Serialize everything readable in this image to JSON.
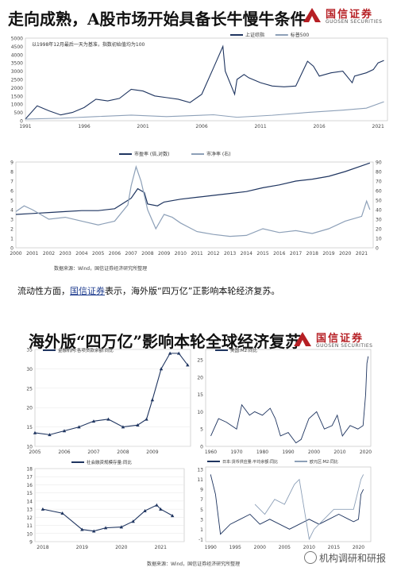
{
  "top": {
    "title": "走向成熟，A股市场开始具备长牛慢牛条件",
    "logo": {
      "name": "国信证券",
      "sub": "GUOSEN SECURITIES",
      "color": "#b61f24"
    },
    "source": "数据来源：Wind，国信证券经济研究所整理"
  },
  "bottom": {
    "title": "海外版“四万亿”影响本轮全球经济复苏",
    "logo": {
      "name": "国信证券",
      "sub": "GUOSEN SECURITIES"
    },
    "source": "数据来源：Wind，国信证券经济研究所整理"
  },
  "paragraph": {
    "prefix": "流动性方面，",
    "link": "国信证券",
    "suffix": "表示，海外版“四万亿”正影响本轮经济复苏。"
  },
  "watermark": "机构调研和研报",
  "chart_data": [
    {
      "type": "line",
      "note": "以1998年12月最后一天为基准，指数初始值均为100",
      "series": [
        {
          "name": "上证综指",
          "color": "#1f3560",
          "x": [
            1991,
            1992,
            1993,
            1994,
            1995,
            1996,
            1997,
            1998,
            1999,
            2000,
            2001,
            2002,
            2003,
            2004,
            2005,
            2006,
            2007,
            2007.8,
            2008,
            2008.8,
            2009,
            2009.6,
            2010,
            2011,
            2012,
            2013,
            2014,
            2015,
            2015.5,
            2016,
            2017,
            2018,
            2018.8,
            2019,
            2020,
            2020.6,
            2021,
            2021.5
          ],
          "y": [
            100,
            900,
            600,
            350,
            500,
            800,
            1300,
            1200,
            1350,
            1900,
            1800,
            1500,
            1400,
            1300,
            1100,
            1600,
            3200,
            4500,
            3000,
            1600,
            2500,
            2800,
            2600,
            2300,
            2100,
            2050,
            2100,
            3600,
            3300,
            2700,
            2900,
            3000,
            2300,
            2700,
            2900,
            3100,
            3500,
            3650
          ]
        },
        {
          "name": "标普500",
          "color": "#8da0b8",
          "x": [
            1991,
            1994,
            1997,
            2000,
            2003,
            2007,
            2009,
            2012,
            2015,
            2018,
            2020,
            2021.5
          ],
          "y": [
            100,
            150,
            250,
            340,
            250,
            360,
            210,
            330,
            500,
            640,
            760,
            1150
          ]
        }
      ],
      "xticks": [
        "1991",
        "1996",
        "2001",
        "2006",
        "2011",
        "2016",
        "2021"
      ],
      "xtick_vals": [
        1991,
        1996,
        2001,
        2006,
        2011,
        2016,
        2021
      ],
      "yticks": [
        "0",
        "500",
        "1000",
        "1500",
        "2000",
        "2500",
        "3000",
        "3500",
        "4000",
        "4500",
        "5000"
      ],
      "ylim": [
        0,
        5000
      ],
      "legend": "top-right"
    },
    {
      "type": "line",
      "series": [
        {
          "name": "市盈率",
          "note": "(倍,对数)",
          "color": "#1f3560",
          "axis": "left",
          "x": [
            2000,
            2001,
            2002,
            2003,
            2004,
            2005,
            2006,
            2007,
            2007.4,
            2007.8,
            2008,
            2008.6,
            2009,
            2010,
            2011,
            2012,
            2013,
            2014,
            2015,
            2016,
            2017,
            2018,
            2019,
            2020,
            2021,
            2021.5
          ],
          "y": [
            3.5,
            3.6,
            3.7,
            3.8,
            3.9,
            3.9,
            4.1,
            5.2,
            6.2,
            5.8,
            4.6,
            4.4,
            4.8,
            5.1,
            5.3,
            5.5,
            5.7,
            5.9,
            6.3,
            6.6,
            7.0,
            7.2,
            7.5,
            8.0,
            8.6,
            8.9
          ]
        },
        {
          "name": "市净率",
          "note": "(右)",
          "color": "#8da0b8",
          "axis": "right",
          "x": [
            2000,
            2000.5,
            2001,
            2001.5,
            2002,
            2003,
            2004,
            2005,
            2006,
            2006.8,
            2007,
            2007.3,
            2007.6,
            2008,
            2008.5,
            2009,
            2009.5,
            2010,
            2011,
            2012,
            2013,
            2014,
            2015,
            2016,
            2017,
            2018,
            2019,
            2020,
            2021,
            2021.3,
            2021.5
          ],
          "y": [
            38,
            44,
            40,
            35,
            30,
            32,
            28,
            24,
            28,
            45,
            65,
            85,
            70,
            40,
            20,
            35,
            32,
            26,
            17,
            14,
            12,
            13,
            20,
            16,
            18,
            15,
            20,
            28,
            33,
            49,
            40
          ]
        }
      ],
      "xticks": [
        "2000",
        "2001",
        "2002",
        "2003",
        "2004",
        "2005",
        "2006",
        "2007",
        "2008",
        "2009",
        "2010",
        "2011",
        "2012",
        "2013",
        "2014",
        "2015",
        "2016",
        "2017",
        "2018",
        "2019",
        "2020",
        "2021"
      ],
      "yticks_left": [
        "0",
        "1",
        "2",
        "3",
        "4",
        "5",
        "6",
        "7",
        "8",
        "9"
      ],
      "yticks_right": [
        "0",
        "10",
        "20",
        "30",
        "40",
        "50",
        "60",
        "70",
        "80",
        "90"
      ],
      "ylim_left": [
        0,
        9
      ],
      "ylim_right": [
        0,
        90
      ],
      "legend": "top-center"
    },
    {
      "type": "line",
      "series": [
        {
          "name": "金融机构:各项贷款余额:同比",
          "color": "#1f3560",
          "x": [
            2005,
            2005.5,
            2006,
            2006.5,
            2007,
            2007.5,
            2008,
            2008.5,
            2008.8,
            2009,
            2009.3,
            2009.6,
            2009.9,
            2010.2
          ],
          "y": [
            13.5,
            13,
            14,
            15,
            16.5,
            17,
            15,
            15.5,
            17,
            22,
            30,
            34,
            34,
            31
          ]
        }
      ],
      "xticks": [
        "2005",
        "2006",
        "2007",
        "2008",
        "2009"
      ],
      "xtick_vals": [
        2005,
        2006,
        2007,
        2008,
        2009
      ],
      "yticks": [
        "10",
        "15",
        "20",
        "25",
        "30",
        "35"
      ],
      "ylim": [
        10,
        35
      ],
      "xlim": [
        2005,
        2010.3
      ],
      "markers": "triangle"
    },
    {
      "type": "line",
      "series": [
        {
          "name": "美国:M2:同比",
          "color": "#1f3560",
          "x": [
            1960,
            1963,
            1966,
            1970,
            1972,
            1975,
            1977,
            1980,
            1983,
            1985,
            1987,
            1990,
            1993,
            1995,
            1998,
            2001,
            2004,
            2007,
            2009,
            2011,
            2014,
            2017,
            2019,
            2020,
            2020.5,
            2021
          ],
          "y": [
            3,
            8,
            7,
            5,
            12,
            9,
            10,
            9,
            11,
            8,
            3,
            4,
            1,
            2,
            8,
            10,
            5,
            6,
            9,
            3,
            6,
            5,
            6,
            15,
            24,
            26
          ]
        }
      ],
      "xticks": [
        "1960",
        "1970",
        "1980",
        "1990",
        "2000",
        "2010",
        "2020"
      ],
      "xtick_vals": [
        1960,
        1970,
        1980,
        1990,
        2000,
        2010,
        2020
      ],
      "yticks": [
        "0",
        "5",
        "10",
        "15",
        "20",
        "25"
      ],
      "ylim": [
        0,
        28
      ],
      "xlim": [
        1958,
        2022
      ]
    },
    {
      "type": "line",
      "series": [
        {
          "name": "社会融资规模存量:同比",
          "color": "#1f3560",
          "x": [
            2018,
            2018.5,
            2019,
            2019.3,
            2019.6,
            2020,
            2020.3,
            2020.6,
            2020.9,
            2021,
            2021.3
          ],
          "y": [
            13,
            12.5,
            10.5,
            10.3,
            10.7,
            10.8,
            11.5,
            12.8,
            13.5,
            13,
            12.2
          ]
        }
      ],
      "xticks": [
        "2018",
        "2019",
        "2020",
        "2021"
      ],
      "xtick_vals": [
        2018,
        2019,
        2020,
        2021
      ],
      "yticks": [
        "9",
        "10",
        "11",
        "12",
        "13",
        "14",
        "15",
        "16",
        "17",
        "18"
      ],
      "ylim": [
        9,
        18
      ],
      "xlim": [
        2017.8,
        2021.6
      ],
      "markers": "triangle"
    },
    {
      "type": "line",
      "series": [
        {
          "name": "日本:货币供应量:平均余额:同比",
          "color": "#1f3560",
          "x": [
            1990,
            1991,
            1992,
            1994,
            1996,
            1998,
            2000,
            2002,
            2004,
            2006,
            2008,
            2010,
            2012,
            2014,
            2016,
            2018,
            2019,
            2020,
            2020.5,
            2021
          ],
          "y": [
            12,
            8,
            0,
            2,
            3,
            4,
            2,
            3,
            2,
            1,
            2,
            3,
            2,
            3,
            4,
            3,
            2.5,
            3,
            8,
            9
          ]
        },
        {
          "name": "欧元区:M2:同比",
          "color": "#8da0b8",
          "x": [
            1999,
            2001,
            2003,
            2005,
            2007,
            2008,
            2009,
            2010,
            2011,
            2013,
            2015,
            2017,
            2019,
            2020,
            2020.5,
            2021
          ],
          "y": [
            6,
            4,
            7,
            6,
            10,
            11,
            5,
            -1,
            1,
            3,
            5,
            5,
            5,
            9,
            11,
            12
          ]
        }
      ],
      "xticks": [
        "1990",
        "1995",
        "2000",
        "2005",
        "2010",
        "2015",
        "2020"
      ],
      "xtick_vals": [
        1990,
        1995,
        2000,
        2005,
        2010,
        2015,
        2020
      ],
      "yticks": [
        "-1",
        "1",
        "3",
        "5",
        "7",
        "9",
        "11",
        "13"
      ],
      "ylim": [
        -1.5,
        13.5
      ],
      "xlim": [
        1989,
        2022.5
      ]
    }
  ]
}
